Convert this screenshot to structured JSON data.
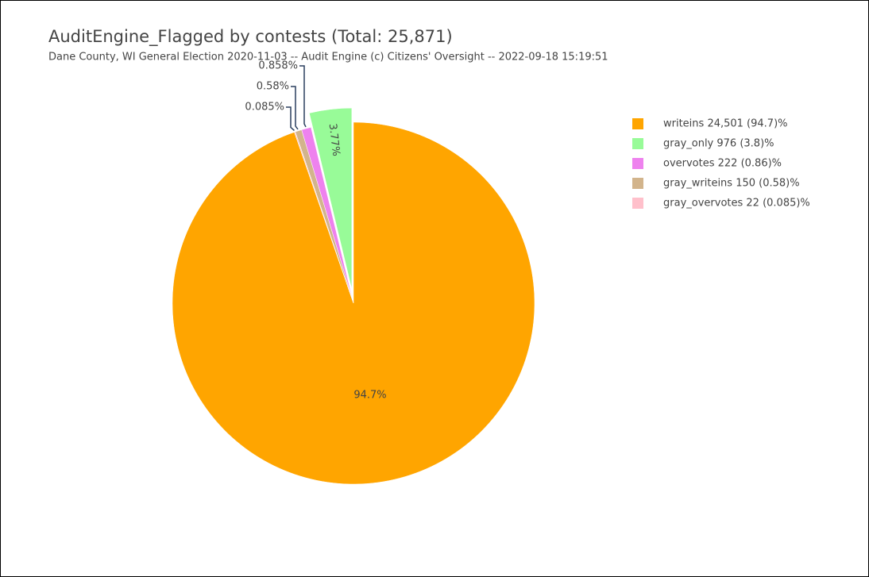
{
  "chart_data": {
    "type": "pie",
    "title": "AuditEngine_Flagged by contests (Total: 25,871)",
    "subtitle": "Dane County, WI General Election 2020-11-03 -- Audit Engine (c) Citizens' Oversight -- 2022-09-18 15:19:51",
    "categories": [
      "writeins 24,501 (94.7)%",
      "gray_only 976 (3.8)%",
      "overvotes 222 (0.86)%",
      "gray_writeins 150 (0.58)%",
      "gray_overvotes 22 (0.085)%"
    ],
    "values": [
      94.7,
      3.77,
      0.858,
      0.58,
      0.085
    ],
    "value_labels": [
      "94.7%",
      "3.77%",
      "0.858%",
      "0.58%",
      "0.085%"
    ],
    "colors": [
      "#ffa500",
      "#98fb98",
      "#ee82ee",
      "#d2b48c",
      "#ffc0cb"
    ],
    "legend": "right"
  }
}
